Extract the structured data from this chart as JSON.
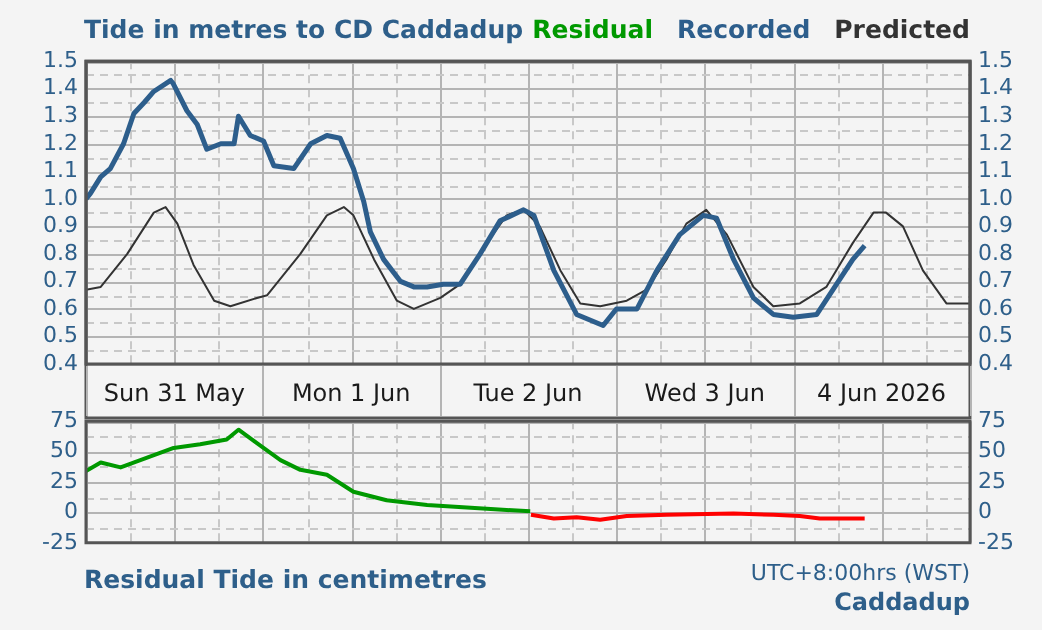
{
  "chart_data": [
    {
      "type": "line",
      "title": "Tide in metres to CD Caddadup",
      "legend": "top right",
      "marker": "none",
      "grid": true,
      "xlim": [
        "2026-05-31T00:00",
        "2026-06-05T00:00"
      ],
      "xticks": [
        {
          "value": "2026-05-31T00:00",
          "label": null
        },
        {
          "value": "2026-05-31T06:00",
          "label": null
        },
        {
          "value": "2026-05-31T12:00",
          "label": "Sun 31 May"
        },
        {
          "value": "2026-05-31T18:00",
          "label": null
        },
        {
          "value": "2026-06-01T00:00",
          "label": null
        },
        {
          "value": "2026-06-01T06:00",
          "label": null
        },
        {
          "value": "2026-06-01T12:00",
          "label": "Mon 1 Jun"
        },
        {
          "value": "2026-06-01T18:00",
          "label": null
        },
        {
          "value": "2026-06-02T00:00",
          "label": null
        },
        {
          "value": "2026-06-02T06:00",
          "label": null
        },
        {
          "value": "2026-06-02T12:00",
          "label": "Tue 2 Jun"
        },
        {
          "value": "2026-06-02T18:00",
          "label": null
        },
        {
          "value": "2026-06-03T00:00",
          "label": null
        },
        {
          "value": "2026-06-03T06:00",
          "label": null
        },
        {
          "value": "2026-06-03T12:00",
          "label": "Wed 3 Jun"
        },
        {
          "value": "2026-06-03T18:00",
          "label": null
        },
        {
          "value": "2026-06-04T00:00",
          "label": null
        },
        {
          "value": "2026-06-04T06:00",
          "label": null
        },
        {
          "value": "2026-06-04T12:00",
          "label": "4 Jun 2026"
        },
        {
          "value": "2026-06-04T18:00",
          "label": null
        },
        {
          "value": "2026-06-05T00:00",
          "label": null
        }
      ],
      "ylim": [
        0.4,
        1.5
      ],
      "yticks": [
        0.4,
        {
          "value": 0.45,
          "label": null
        },
        0.5,
        {
          "value": 0.55,
          "label": null
        },
        0.6,
        {
          "value": 0.65,
          "label": null
        },
        0.7,
        {
          "value": 0.75,
          "label": null
        },
        0.8,
        {
          "value": 0.85,
          "label": null
        },
        0.9,
        {
          "value": 0.95,
          "label": null
        },
        {
          "value": 1,
          "label": "1.0"
        },
        {
          "value": 1.05,
          "label": null
        },
        1.1,
        {
          "value": 1.15,
          "label": null
        },
        1.2,
        {
          "value": 1.25,
          "label": null
        },
        1.3,
        {
          "value": 1.35,
          "label": null
        },
        1.4,
        {
          "value": 1.45,
          "label": null
        },
        1.5
      ],
      "y2lim": [
        0.4,
        1.5
      ],
      "y2ticks": [
        0.4,
        0.5,
        0.6,
        0.7,
        0.8,
        0.9,
        {
          "value": 1,
          "label": "1.0"
        },
        1.1,
        1.2,
        1.3,
        1.4,
        1.5
      ],
      "series": [
        {
          "name": "Recorded",
          "color": "#2d5e8c",
          "x": [
            "2026-05-31T00:00",
            "2026-05-31T00:36",
            "2026-05-31T02:00",
            "2026-05-31T03:18",
            "2026-05-31T05:06",
            "2026-05-31T06:30",
            "2026-05-31T07:54",
            "2026-05-31T09:12",
            "2026-05-31T11:30",
            "2026-05-31T11:48",
            "2026-05-31T13:42",
            "2026-05-31T15:06",
            "2026-05-31T16:24",
            "2026-05-31T18:18",
            "2026-05-31T20:06",
            "2026-05-31T20:42",
            "2026-05-31T22:18",
            "2026-06-01T00:06",
            "2026-06-01T01:30",
            "2026-06-01T04:12",
            "2026-06-01T06:30",
            "2026-06-01T08:42",
            "2026-06-01T10:30",
            "2026-06-01T12:18",
            "2026-06-01T13:42",
            "2026-06-01T14:36",
            "2026-06-01T16:24",
            "2026-06-01T18:42",
            "2026-06-01T20:30",
            "2026-06-01T22:18",
            "2026-06-02T00:30",
            "2026-06-02T02:48",
            "2026-06-02T05:30",
            "2026-06-02T08:12",
            "2026-06-02T11:24",
            "2026-06-02T12:48",
            "2026-06-02T15:30",
            "2026-06-02T18:36",
            "2026-06-02T22:12",
            "2026-06-03T00:00",
            "2026-06-03T02:48",
            "2026-06-03T05:30",
            "2026-06-03T08:36",
            "2026-06-03T11:48",
            "2026-06-03T13:36",
            "2026-06-03T15:54",
            "2026-06-03T18:36",
            "2026-06-03T21:18",
            "2026-06-04T00:00",
            "2026-06-04T03:12",
            "2026-06-04T05:24",
            "2026-06-04T08:06",
            "2026-06-04T09:42"
          ],
          "values": [
            1,
            1.02,
            1.08,
            1.11,
            1.2,
            1.31,
            1.35,
            1.39,
            1.43,
            1.42,
            1.32,
            1.27,
            1.18,
            1.2,
            1.2,
            1.3,
            1.23,
            1.21,
            1.12,
            1.11,
            1.2,
            1.23,
            1.22,
            1.11,
            0.99,
            0.88,
            0.78,
            0.7,
            0.68,
            0.68,
            0.69,
            0.69,
            0.8,
            0.92,
            0.96,
            0.94,
            0.74,
            0.58,
            0.54,
            0.6,
            0.6,
            0.74,
            0.87,
            0.94,
            0.93,
            0.78,
            0.64,
            0.58,
            0.57,
            0.58,
            0.67,
            0.78,
            0.83
          ]
        },
        {
          "name": "Predicted",
          "color": "#333333",
          "x": [
            "2026-05-31T00:00",
            "2026-05-31T02:00",
            "2026-05-31T05:36",
            "2026-05-31T09:12",
            "2026-05-31T10:48",
            "2026-05-31T12:24",
            "2026-05-31T14:36",
            "2026-05-31T17:24",
            "2026-05-31T19:36",
            "2026-05-31T23:12",
            "2026-06-01T00:36",
            "2026-06-01T05:06",
            "2026-06-01T08:42",
            "2026-06-01T11:00",
            "2026-06-01T12:18",
            "2026-06-01T15:06",
            "2026-06-01T18:12",
            "2026-06-01T20:30",
            "2026-06-02T00:06",
            "2026-06-02T02:48",
            "2026-06-02T06:24",
            "2026-06-02T09:06",
            "2026-06-02T11:24",
            "2026-06-02T13:36",
            "2026-06-02T16:24",
            "2026-06-02T19:06",
            "2026-06-02T21:48",
            "2026-06-03T01:24",
            "2026-06-03T04:06",
            "2026-06-03T06:48",
            "2026-06-03T09:30",
            "2026-06-03T12:12",
            "2026-06-03T15:00",
            "2026-06-03T18:36",
            "2026-06-03T21:18",
            "2026-06-04T00:54",
            "2026-06-04T04:30",
            "2026-06-04T08:06",
            "2026-06-04T10:54",
            "2026-06-04T12:36",
            "2026-06-04T14:54",
            "2026-06-04T17:36",
            "2026-06-04T20:48",
            "2026-06-05T00:00"
          ],
          "values": [
            0.67,
            0.68,
            0.8,
            0.95,
            0.97,
            0.91,
            0.76,
            0.63,
            0.61,
            0.64,
            0.65,
            0.8,
            0.94,
            0.97,
            0.94,
            0.78,
            0.63,
            0.6,
            0.64,
            0.69,
            0.84,
            0.94,
            0.96,
            0.9,
            0.74,
            0.62,
            0.61,
            0.63,
            0.67,
            0.78,
            0.91,
            0.96,
            0.87,
            0.68,
            0.61,
            0.62,
            0.68,
            0.84,
            0.95,
            0.95,
            0.9,
            0.74,
            0.62,
            0.62
          ]
        }
      ]
    },
    {
      "type": "line",
      "title": "Residual Tide in centimetres",
      "annotations": [
        "UTC+8:00hrs (WST)",
        "Caddadup"
      ],
      "legend": "top right",
      "marker": "none",
      "grid": true,
      "tick_labels": "y",
      "xlim": [
        "2026-05-31T00:00",
        "2026-06-05T00:00"
      ],
      "xticks": [
        {
          "value": "2026-05-31T00:00",
          "label": null
        },
        {
          "value": "2026-05-31T06:00",
          "label": null
        },
        {
          "value": "2026-05-31T12:00",
          "label": null
        },
        {
          "value": "2026-05-31T18:00",
          "label": null
        },
        {
          "value": "2026-06-01T00:00",
          "label": null
        },
        {
          "value": "2026-06-01T06:00",
          "label": null
        },
        {
          "value": "2026-06-01T12:00",
          "label": null
        },
        {
          "value": "2026-06-01T18:00",
          "label": null
        },
        {
          "value": "2026-06-02T00:00",
          "label": null
        },
        {
          "value": "2026-06-02T06:00",
          "label": null
        },
        {
          "value": "2026-06-02T12:00",
          "label": null
        },
        {
          "value": "2026-06-02T18:00",
          "label": null
        },
        {
          "value": "2026-06-03T00:00",
          "label": null
        },
        {
          "value": "2026-06-03T06:00",
          "label": null
        },
        {
          "value": "2026-06-03T12:00",
          "label": null
        },
        {
          "value": "2026-06-03T18:00",
          "label": null
        },
        {
          "value": "2026-06-04T00:00",
          "label": null
        },
        {
          "value": "2026-06-04T06:00",
          "label": null
        },
        {
          "value": "2026-06-04T12:00",
          "label": null
        },
        {
          "value": "2026-06-04T18:00",
          "label": null
        },
        {
          "value": "2026-06-05T00:00",
          "label": null
        }
      ],
      "ylim": [
        -25,
        75
      ],
      "yticks": [
        -25,
        {
          "value": -12.5,
          "label": null
        },
        0,
        {
          "value": 12.5,
          "label": null
        },
        25,
        {
          "value": 37.5,
          "label": null
        },
        50,
        {
          "value": 62.5,
          "label": null
        },
        75
      ],
      "y2lim": [
        -25,
        75
      ],
      "y2ticks": [
        -25,
        0,
        25,
        50,
        75
      ],
      "series": [
        {
          "name": "Residual",
          "color": "#009900",
          "x": [
            "2026-05-31T00:00",
            "2026-05-31T02:00",
            "2026-05-31T04:42",
            "2026-05-31T08:18",
            "2026-05-31T11:54",
            "2026-05-31T15:30",
            "2026-05-31T19:06",
            "2026-05-31T20:42",
            "2026-05-31T23:12",
            "2026-06-01T02:24",
            "2026-06-01T05:06",
            "2026-06-01T08:42",
            "2026-06-01T12:18",
            "2026-06-01T16:48",
            "2026-06-01T22:18",
            "2026-06-02T03:42",
            "2026-06-02T09:06",
            "2026-06-02T12:18"
          ],
          "values": [
            34,
            41,
            37,
            45,
            53,
            56,
            60,
            68,
            57,
            43,
            35,
            31,
            17,
            10,
            6,
            4,
            2,
            1
          ]
        },
        {
          "color": "#ff0000",
          "x": [
            "2026-06-02T12:24",
            "2026-06-02T15:30",
            "2026-06-02T18:36",
            "2026-06-02T21:48",
            "2026-06-03T01:24",
            "2026-06-03T06:48",
            "2026-06-03T15:54",
            "2026-06-03T21:18",
            "2026-06-04T00:54",
            "2026-06-04T03:36",
            "2026-06-04T09:42"
          ],
          "values": [
            -2,
            -5,
            -4,
            -6,
            -3,
            -2,
            -1,
            -2,
            -3,
            -5,
            -5
          ]
        }
      ]
    }
  ]
}
